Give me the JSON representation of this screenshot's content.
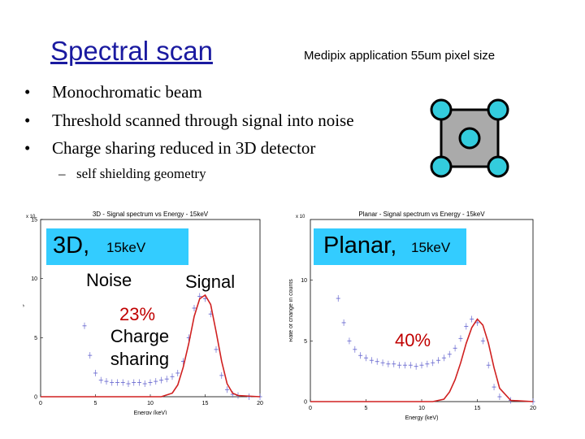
{
  "title": "Spectral scan",
  "subtitle": "Medipix application   55um pixel size",
  "bullets": [
    "Monochromatic beam",
    "Threshold scanned through signal into noise",
    "Charge sharing reduced in 3D detector"
  ],
  "sub_bullet": "self shielding geometry",
  "colors": {
    "title": "#1a1aa0",
    "callout": "#33ccff",
    "data": "#6a6ad0",
    "fit": "#d02020",
    "pixel_circle": "#33ccdd",
    "pixel_square": "#aaaaaa",
    "percent": "#c00000"
  },
  "icons": {
    "bullet": "bullet-dot",
    "sub_bullet": "dash"
  },
  "callouts": {
    "left": {
      "main": "3D,",
      "energy": "15keV"
    },
    "right": {
      "main": "Planar,",
      "energy": "15keV"
    }
  },
  "labels": {
    "noise": "Noise",
    "signal": "Signal",
    "percent_left": "23%",
    "charge_line1": "Charge",
    "charge_line2": "sharing",
    "percent_right": "40%"
  },
  "chart_data": [
    {
      "type": "scatter",
      "title": "3D - Signal spectrum vs Energy - 15keV",
      "xlabel": "Energy (keV)",
      "ylabel": "Rate of change in counts",
      "exponent_label": "x 10",
      "xlim": [
        0,
        20
      ],
      "ylim": [
        0,
        15
      ],
      "xticks": [
        "0",
        "5",
        "10",
        "15",
        "20"
      ],
      "yticks": [
        "0",
        "5",
        "10",
        "15"
      ],
      "series": [
        {
          "x": [
            4.0,
            4.5,
            5,
            5.5,
            6,
            6.5,
            7,
            7.5,
            8,
            8.5,
            9,
            9.5,
            10,
            10.5,
            11,
            11.5,
            12,
            12.5,
            13,
            13.5,
            14,
            14.5,
            15,
            15.5,
            16,
            16.5,
            17,
            17.5,
            18,
            19,
            20
          ],
          "y": [
            6.0,
            3.5,
            2.0,
            1.4,
            1.3,
            1.2,
            1.2,
            1.2,
            1.1,
            1.2,
            1.2,
            1.1,
            1.2,
            1.3,
            1.4,
            1.5,
            1.7,
            2.0,
            3.0,
            5.0,
            7.5,
            8.5,
            8.3,
            7.0,
            4.0,
            1.8,
            0.6,
            0.2,
            0.1,
            0.0,
            0.0
          ]
        },
        {
          "x": [
            0,
            11,
            12,
            12.5,
            13,
            13.5,
            14,
            14.5,
            15,
            15.5,
            16,
            16.5,
            17,
            17.5,
            18,
            20
          ],
          "y": [
            0,
            0,
            0.3,
            1.0,
            2.5,
            4.5,
            6.8,
            8.3,
            8.6,
            7.8,
            5.5,
            3.0,
            1.1,
            0.3,
            0.1,
            0
          ]
        }
      ]
    },
    {
      "type": "scatter",
      "title": "Planar - Signal spectrum vs Energy - 15keV",
      "xlabel": "Energy (keV)",
      "ylabel": "Rate of change in counts",
      "exponent_label": "x 10",
      "xlim": [
        0,
        20
      ],
      "ylim": [
        0,
        15
      ],
      "xticks": [
        "0",
        "5",
        "10",
        "15",
        "20"
      ],
      "yticks": [
        "0",
        "5",
        "10"
      ],
      "series": [
        {
          "x": [
            2.5,
            3,
            3.5,
            4,
            4.5,
            5,
            5.5,
            6,
            6.5,
            7,
            7.5,
            8,
            8.5,
            9,
            9.5,
            10,
            10.5,
            11,
            11.5,
            12,
            12.5,
            13,
            13.5,
            14,
            14.5,
            15,
            15.5,
            16,
            16.5,
            17,
            18,
            20
          ],
          "y": [
            8.5,
            6.5,
            5.0,
            4.3,
            3.8,
            3.6,
            3.4,
            3.3,
            3.2,
            3.1,
            3.1,
            3.0,
            3.0,
            3.0,
            2.9,
            3.0,
            3.1,
            3.2,
            3.4,
            3.6,
            3.9,
            4.4,
            5.2,
            6.2,
            6.8,
            6.5,
            5.0,
            3.0,
            1.2,
            0.4,
            0.1,
            0.0
          ]
        },
        {
          "x": [
            0,
            11,
            12,
            12.5,
            13,
            13.5,
            14,
            14.5,
            15,
            15.5,
            16,
            16.5,
            17,
            18,
            20
          ],
          "y": [
            0,
            0,
            0.2,
            0.8,
            1.8,
            3.2,
            4.8,
            6.1,
            6.8,
            6.3,
            4.8,
            2.8,
            1.1,
            0.1,
            0
          ]
        }
      ]
    }
  ]
}
